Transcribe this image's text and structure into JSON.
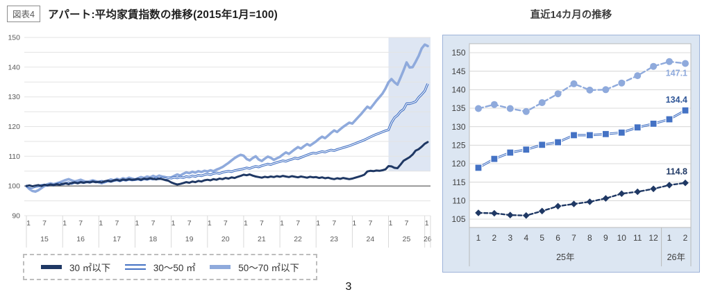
{
  "header": {
    "figure_label": "図表4",
    "title": "アパート:平均家賃指数の推移(2015年1月=100)"
  },
  "right_panel": {
    "title": "直近14カ月の推移"
  },
  "legend": {
    "items": [
      {
        "label": "30 ㎡以下"
      },
      {
        "label": "30〜50 ㎡"
      },
      {
        "label": "50〜70 ㎡以下"
      }
    ]
  },
  "page_number": "3",
  "colors": {
    "navy": "#1f3864",
    "blue": "#4472c4",
    "light_blue": "#8faadc",
    "panel_bg": "#dce6f2",
    "panel_border": "#9db3d8",
    "highlight": "#cdd9ec",
    "grid": "#e3e3e3",
    "axis_text": "#595959"
  },
  "chart_data": [
    {
      "type": "line",
      "title": "アパート:平均家賃指数の推移(2015年1月=100)",
      "x_unit": "month",
      "x_start": "2015-01",
      "x_end": "2026-02",
      "ylim": [
        90,
        150
      ],
      "y_tick_step": 5,
      "y_label_step": 10,
      "grid": true,
      "baseline_value": 100,
      "x_axis": {
        "month_ticks": [
          "1",
          "7"
        ],
        "years": [
          "15",
          "16",
          "17",
          "18",
          "19",
          "20",
          "21",
          "22",
          "23",
          "24",
          "25",
          "26"
        ]
      },
      "highlight_region": {
        "start": "2025-01",
        "end": "2026-02",
        "start_index": 120,
        "color": "#cdd9ec",
        "note": "直近14カ月"
      },
      "series": [
        {
          "key": "under-30",
          "name": "30 ㎡以下",
          "color": "#1f3864",
          "style": "solid",
          "width": 3.0,
          "values": [
            100.0,
            100.2,
            99.9,
            100.1,
            100.3,
            100.0,
            100.4,
            100.2,
            100.5,
            100.3,
            100.6,
            100.4,
            100.7,
            100.9,
            100.6,
            101.0,
            101.2,
            100.9,
            101.3,
            101.1,
            101.4,
            101.2,
            101.5,
            101.3,
            101.4,
            101.2,
            101.6,
            101.8,
            101.5,
            101.9,
            102.1,
            101.8,
            102.2,
            102.0,
            102.3,
            102.1,
            102.2,
            102.4,
            102.1,
            102.5,
            102.3,
            102.6,
            102.4,
            102.2,
            102.5,
            102.3,
            102.0,
            101.8,
            101.2,
            100.8,
            100.5,
            100.7,
            101.0,
            101.3,
            101.1,
            101.5,
            101.3,
            101.7,
            101.5,
            101.9,
            102.1,
            101.9,
            102.3,
            102.1,
            102.5,
            102.3,
            102.7,
            102.5,
            102.9,
            102.7,
            103.1,
            103.4,
            103.8,
            103.6,
            103.9,
            103.5,
            103.2,
            103.0,
            102.8,
            103.1,
            102.9,
            103.2,
            103.0,
            103.3,
            103.1,
            103.4,
            103.2,
            103.0,
            103.3,
            103.1,
            102.9,
            103.2,
            103.0,
            102.8,
            103.1,
            102.9,
            103.0,
            102.7,
            102.9,
            102.6,
            102.8,
            102.5,
            102.3,
            102.6,
            102.4,
            102.7,
            102.5,
            102.3,
            102.5,
            102.8,
            103.1,
            103.4,
            103.8,
            104.9,
            105.1,
            105.0,
            105.2,
            105.1,
            105.3,
            105.6,
            106.7,
            106.6,
            106.1,
            106.0,
            107.2,
            108.5,
            109.1,
            109.7,
            110.6,
            111.9,
            112.4,
            113.2,
            114.2,
            114.8
          ]
        },
        {
          "key": "30-50",
          "name": "30〜50 ㎡",
          "color": "#4472c4",
          "style": "double",
          "width": 3.4,
          "values": [
            100.0,
            99.7,
            99.5,
            99.8,
            100.0,
            100.2,
            100.4,
            100.2,
            100.5,
            100.3,
            100.6,
            100.8,
            100.6,
            100.9,
            101.1,
            100.8,
            101.2,
            101.0,
            101.3,
            101.1,
            101.4,
            101.2,
            101.5,
            101.3,
            101.4,
            101.6,
            101.3,
            101.7,
            101.5,
            101.8,
            102.0,
            101.7,
            102.1,
            101.9,
            102.2,
            102.0,
            102.1,
            102.3,
            102.0,
            102.4,
            102.2,
            102.5,
            102.3,
            102.6,
            102.4,
            102.7,
            102.5,
            102.8,
            102.6,
            102.9,
            102.7,
            103.0,
            102.8,
            103.2,
            103.0,
            103.4,
            103.2,
            103.6,
            103.4,
            103.8,
            104.0,
            103.8,
            104.2,
            104.4,
            104.2,
            104.6,
            104.8,
            105.0,
            104.8,
            105.2,
            105.4,
            105.6,
            105.8,
            106.1,
            105.9,
            106.3,
            106.6,
            106.4,
            106.8,
            107.1,
            107.4,
            107.2,
            107.6,
            107.9,
            108.2,
            108.5,
            108.3,
            108.7,
            109.0,
            109.4,
            109.2,
            109.6,
            110.0,
            110.4,
            110.8,
            111.1,
            111.0,
            111.3,
            111.6,
            111.4,
            111.8,
            112.1,
            111.9,
            112.3,
            112.6,
            112.9,
            113.2,
            113.5,
            113.9,
            114.3,
            114.7,
            115.1,
            115.5,
            116.0,
            116.5,
            117.0,
            117.4,
            117.8,
            118.2,
            118.6,
            118.9,
            121.3,
            123.0,
            123.8,
            125.1,
            125.8,
            127.7,
            127.7,
            128.0,
            128.4,
            129.8,
            130.8,
            132.0,
            134.4
          ]
        },
        {
          "key": "50-70",
          "name": "50〜70 ㎡以下",
          "color": "#8faadc",
          "style": "solid",
          "width": 3.6,
          "values": [
            100.0,
            99.0,
            98.3,
            98.1,
            98.6,
            99.3,
            100.0,
            100.6,
            100.9,
            100.6,
            100.9,
            101.2,
            101.6,
            102.0,
            102.3,
            101.9,
            101.5,
            101.8,
            102.1,
            101.7,
            101.3,
            101.6,
            101.9,
            101.6,
            101.2,
            100.9,
            101.4,
            101.8,
            102.2,
            101.9,
            102.4,
            102.1,
            102.6,
            102.3,
            102.8,
            102.5,
            102.2,
            102.6,
            103.0,
            102.7,
            103.2,
            102.9,
            103.4,
            103.0,
            103.5,
            103.2,
            103.0,
            102.7,
            102.9,
            103.4,
            103.9,
            103.5,
            104.1,
            104.6,
            104.3,
            104.8,
            104.5,
            105.0,
            104.7,
            105.1,
            104.9,
            105.3,
            105.0,
            105.5,
            105.9,
            106.4,
            107.1,
            107.8,
            108.6,
            109.4,
            110.0,
            110.5,
            110.2,
            109.1,
            108.6,
            109.4,
            110.0,
            108.9,
            108.4,
            109.2,
            109.9,
            109.5,
            108.8,
            109.3,
            109.8,
            110.6,
            111.3,
            110.8,
            111.6,
            112.4,
            113.1,
            112.6,
            113.4,
            114.1,
            113.6,
            114.3,
            115.0,
            115.9,
            116.6,
            116.1,
            117.0,
            117.9,
            118.7,
            118.2,
            119.1,
            119.9,
            120.6,
            121.3,
            121.0,
            122.1,
            123.2,
            124.3,
            125.5,
            126.7,
            126.1,
            127.4,
            128.7,
            129.9,
            131.1,
            132.8,
            134.9,
            136.0,
            134.9,
            134.1,
            136.5,
            138.9,
            141.6,
            139.9,
            140.0,
            141.8,
            143.8,
            146.3,
            147.6,
            147.1
          ]
        }
      ]
    },
    {
      "type": "line",
      "title": "直近14カ月の推移",
      "categories": [
        "1",
        "2",
        "3",
        "4",
        "5",
        "6",
        "7",
        "8",
        "9",
        "10",
        "11",
        "12",
        "1",
        "2"
      ],
      "year_groups": [
        {
          "label": "25年",
          "span": 12
        },
        {
          "label": "26年",
          "span": 2
        }
      ],
      "ylim": [
        105,
        150
      ],
      "y_tick_step": 5,
      "grid": true,
      "series": [
        {
          "key": "under-30",
          "name": "30 ㎡以下",
          "color": "#1f3864",
          "line": "dashed",
          "marker": "diamond",
          "end_label": "114.8",
          "label_color": "#1f3864",
          "values": [
            106.7,
            106.6,
            106.1,
            106.0,
            107.2,
            108.5,
            109.1,
            109.7,
            110.6,
            111.9,
            112.4,
            113.2,
            114.2,
            114.8
          ]
        },
        {
          "key": "30-50",
          "name": "30〜50 ㎡",
          "color": "#4472c4",
          "line": "double",
          "marker": "square",
          "end_label": "134.4",
          "label_color": "#2e5597",
          "values": [
            118.9,
            121.3,
            123.0,
            123.8,
            125.1,
            125.8,
            127.7,
            127.7,
            128.0,
            128.4,
            129.8,
            130.8,
            132.0,
            134.4
          ]
        },
        {
          "key": "50-70",
          "name": "50〜70 ㎡以下",
          "color": "#8faadc",
          "line": "dashed",
          "marker": "circle",
          "end_label": "147.1",
          "label_color": "#8faadc",
          "values": [
            134.9,
            136.0,
            134.9,
            134.1,
            136.5,
            138.9,
            141.6,
            139.9,
            140.0,
            141.8,
            143.8,
            146.3,
            147.6,
            147.1
          ]
        }
      ]
    }
  ]
}
